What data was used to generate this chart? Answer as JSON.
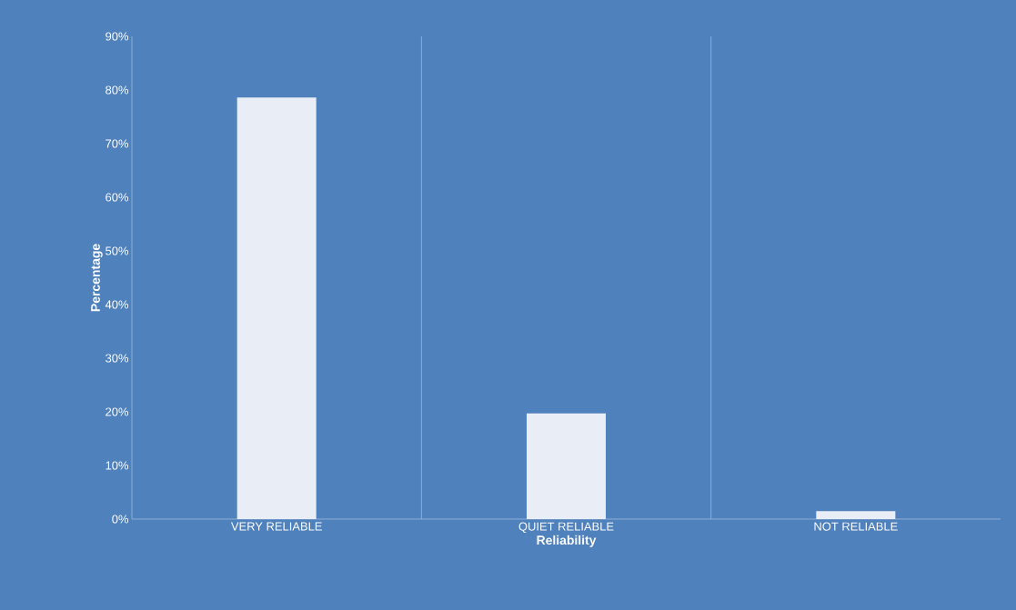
{
  "chart_data": {
    "type": "bar",
    "xlabel": "Reliability",
    "ylabel": "Percentage",
    "categories": [
      "VERY RELIABLE",
      "QUIET RELIABLE",
      "NOT RELIABLE"
    ],
    "values": [
      78.6,
      19.7,
      1.5
    ],
    "color": "#e9eef6",
    "ylim": [
      0,
      90
    ],
    "yticks": [
      {
        "value": 0,
        "label": "0%"
      },
      {
        "value": 10,
        "label": "10%"
      },
      {
        "value": 20,
        "label": "20%"
      },
      {
        "value": 30,
        "label": "30%"
      },
      {
        "value": 40,
        "label": "40%"
      },
      {
        "value": 50,
        "label": "50%"
      },
      {
        "value": 60,
        "label": "60%"
      },
      {
        "value": 70,
        "label": "70%"
      },
      {
        "value": 80,
        "label": "80%"
      },
      {
        "value": 90,
        "label": "90%"
      }
    ],
    "grid": "x"
  }
}
